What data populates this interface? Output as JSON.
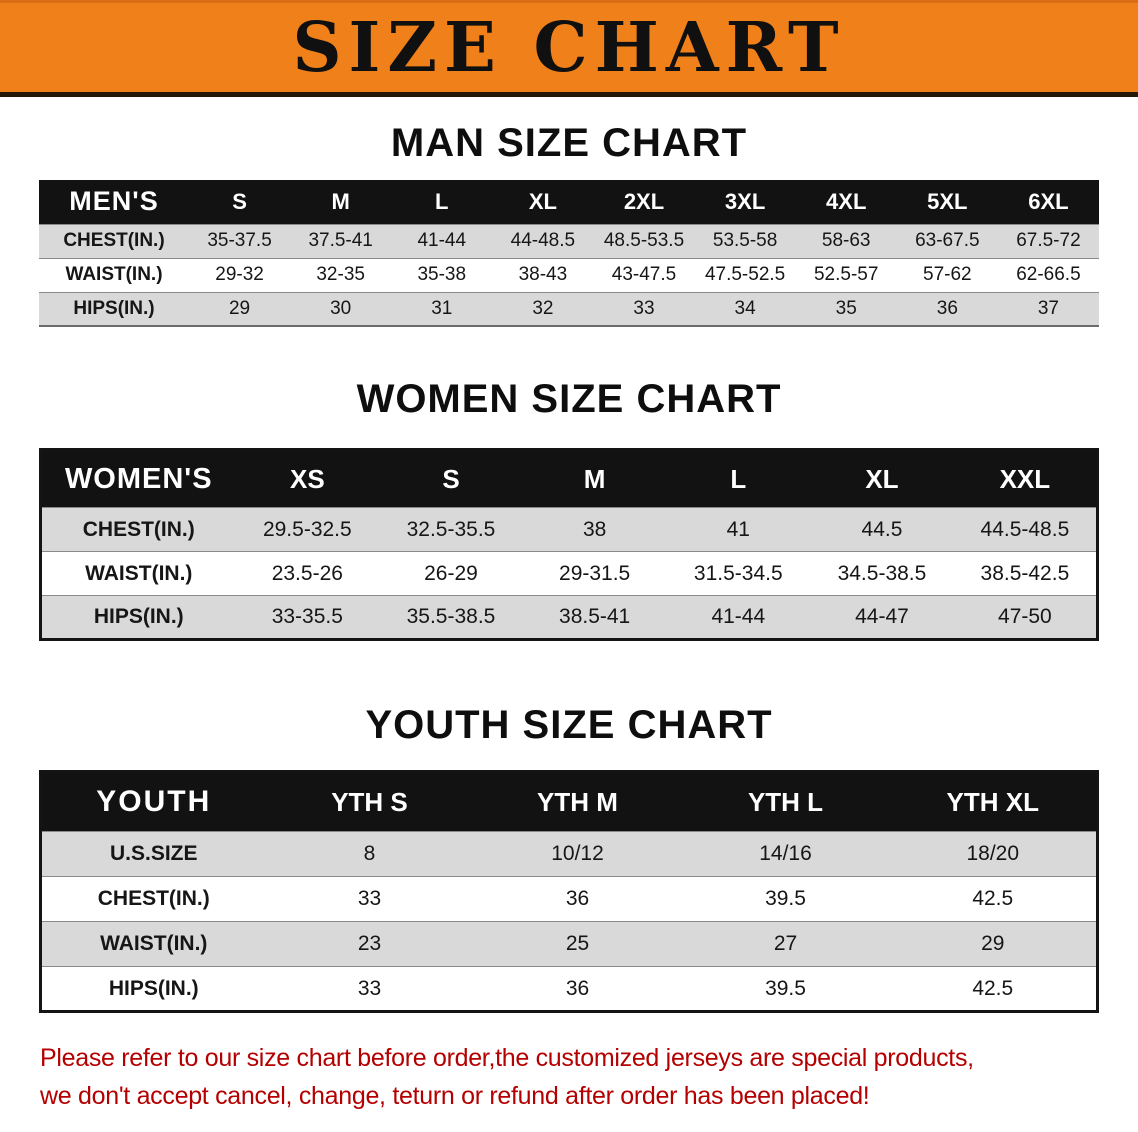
{
  "banner": {
    "title": "SIZE CHART"
  },
  "sections": [
    {
      "heading": "MAN SIZE CHART",
      "header": [
        "MEN'S",
        "S",
        "M",
        "L",
        "XL",
        "2XL",
        "3XL",
        "4XL",
        "5XL",
        "6XL"
      ],
      "rows": [
        {
          "label": "CHEST(IN.)",
          "values": [
            "35-37.5",
            "37.5-41",
            "41-44",
            "44-48.5",
            "48.5-53.5",
            "53.5-58",
            "58-63",
            "63-67.5",
            "67.5-72"
          ]
        },
        {
          "label": "WAIST(IN.)",
          "values": [
            "29-32",
            "32-35",
            "35-38",
            "38-43",
            "43-47.5",
            "47.5-52.5",
            "52.5-57",
            "57-62",
            "62-66.5"
          ]
        },
        {
          "label": "HIPS(IN.)",
          "values": [
            "29",
            "30",
            "31",
            "32",
            "33",
            "34",
            "35",
            "36",
            "37"
          ]
        }
      ]
    },
    {
      "heading": "WOMEN SIZE CHART",
      "header": [
        "WOMEN'S",
        "XS",
        "S",
        "M",
        "L",
        "XL",
        "XXL"
      ],
      "rows": [
        {
          "label": "CHEST(IN.)",
          "values": [
            "29.5-32.5",
            "32.5-35.5",
            "38",
            "41",
            "44.5",
            "44.5-48.5"
          ]
        },
        {
          "label": "WAIST(IN.)",
          "values": [
            "23.5-26",
            "26-29",
            "29-31.5",
            "31.5-34.5",
            "34.5-38.5",
            "38.5-42.5"
          ]
        },
        {
          "label": "HIPS(IN.)",
          "values": [
            "33-35.5",
            "35.5-38.5",
            "38.5-41",
            "41-44",
            "44-47",
            "47-50"
          ]
        }
      ]
    },
    {
      "heading": "YOUTH SIZE CHART",
      "header": [
        "YOUTH",
        "YTH S",
        "YTH M",
        "YTH L",
        "YTH XL"
      ],
      "rows": [
        {
          "label": "U.S.SIZE",
          "values": [
            "8",
            "10/12",
            "14/16",
            "18/20"
          ]
        },
        {
          "label": "CHEST(IN.)",
          "values": [
            "33",
            "36",
            "39.5",
            "42.5"
          ]
        },
        {
          "label": "WAIST(IN.)",
          "values": [
            "23",
            "25",
            "27",
            "29"
          ]
        },
        {
          "label": "HIPS(IN.)",
          "values": [
            "33",
            "36",
            "39.5",
            "42.5"
          ]
        }
      ]
    }
  ],
  "footer": {
    "lines": [
      "Please refer to our size chart before order,the customized jerseys are special products,",
      "we don't accept cancel, change, teturn or refund after order has been placed!"
    ]
  },
  "colors": {
    "banner_bg": "#f08019",
    "table_header_bg": "#121212",
    "row_alt_bg": "#d9d9d9",
    "notice_text": "#b40000"
  }
}
